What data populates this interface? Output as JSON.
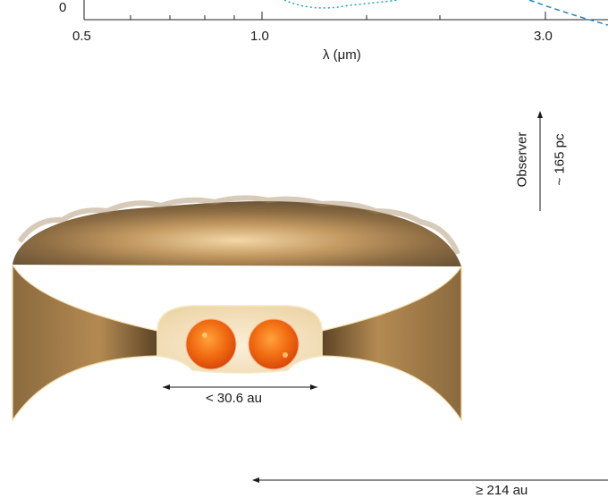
{
  "spectrum_panel": {
    "y_tick_zero": "0",
    "x_ticks": [
      "0.5",
      "1.0",
      "3.0"
    ],
    "x_axis_label": "λ (μm)",
    "model_curve_colors": [
      "#1aa7b5",
      "#1f86c0"
    ]
  },
  "schematic": {
    "observer_label": "Observer",
    "distance_label": "~ 165 pc",
    "binary_separation_label": "< 30.6 au",
    "outer_size_label": "≥ 214 au",
    "colors": {
      "dust_cloud": "#8a6a3e",
      "cavity_edge": "#f4dca8",
      "star": "#f06a10"
    }
  }
}
